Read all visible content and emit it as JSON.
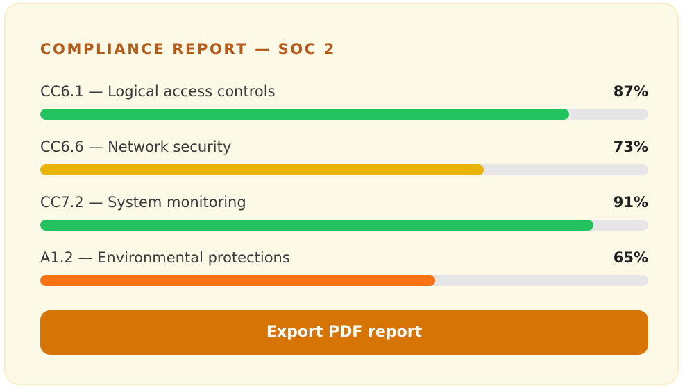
{
  "card": {
    "title": "COMPLIANCE REPORT — SOC 2"
  },
  "controls": [
    {
      "label": "CC6.1 — Logical access controls",
      "value_text": "87%",
      "percent": 87,
      "color": "#22c35e"
    },
    {
      "label": "CC6.6 — Network security",
      "value_text": "73%",
      "percent": 73,
      "color": "#e9b308"
    },
    {
      "label": "CC7.2 — System monitoring",
      "value_text": "91%",
      "percent": 91,
      "color": "#22c35e"
    },
    {
      "label": "A1.2 — Environmental protections",
      "value_text": "65%",
      "percent": 65,
      "color": "#f97315"
    }
  ],
  "actions": {
    "export_label": "Export PDF report"
  }
}
